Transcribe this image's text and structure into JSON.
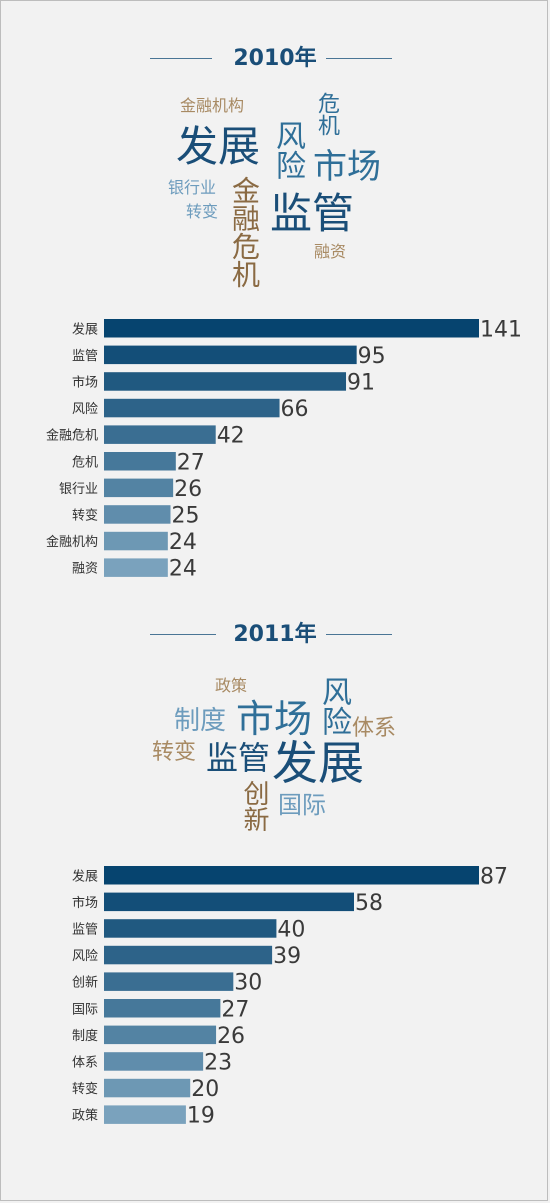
{
  "colors": {
    "bar_dark": "#06446f",
    "bar_light": "#7aa2bd",
    "cloud_blue_dark": "#1a4e78",
    "cloud_blue_mid": "#2f6f98",
    "cloud_blue_light": "#6d9cbd",
    "cloud_tan": "#a88a63",
    "cloud_brown": "#8a6a43"
  },
  "sections": [
    {
      "year": "2010年",
      "cloud": [
        {
          "text": "金融机构",
          "size": 16,
          "color": "cloud_tan",
          "vertical": false
        },
        {
          "text": "发展",
          "size": 42,
          "color": "cloud_blue_dark",
          "vertical": false
        },
        {
          "text": "危机",
          "size": 22,
          "color": "cloud_blue_mid",
          "vertical": true
        },
        {
          "text": "风险",
          "size": 30,
          "color": "cloud_blue_mid",
          "vertical": true
        },
        {
          "text": "市场",
          "size": 34,
          "color": "cloud_blue_mid",
          "vertical": false
        },
        {
          "text": "银行业",
          "size": 16,
          "color": "cloud_blue_light",
          "vertical": false
        },
        {
          "text": "转变",
          "size": 16,
          "color": "cloud_blue_light",
          "vertical": false
        },
        {
          "text": "金融危机",
          "size": 28,
          "color": "cloud_brown",
          "vertical": true
        },
        {
          "text": "监管",
          "size": 42,
          "color": "cloud_blue_dark",
          "vertical": false
        },
        {
          "text": "融资",
          "size": 16,
          "color": "cloud_tan",
          "vertical": false
        }
      ],
      "chart_data": {
        "type": "bar",
        "categories": [
          "发展",
          "监管",
          "市场",
          "风险",
          "金融危机",
          "危机",
          "银行业",
          "转变",
          "金融机构",
          "融资"
        ],
        "values": [
          141,
          95,
          91,
          66,
          42,
          27,
          26,
          25,
          24,
          24
        ],
        "xlim": [
          0,
          141
        ]
      }
    },
    {
      "year": "2011年",
      "cloud": [
        {
          "text": "政策",
          "size": 16,
          "color": "cloud_tan",
          "vertical": false
        },
        {
          "text": "风险",
          "size": 30,
          "color": "cloud_blue_mid",
          "vertical": true
        },
        {
          "text": "制度",
          "size": 26,
          "color": "cloud_blue_light",
          "vertical": false
        },
        {
          "text": "市场",
          "size": 38,
          "color": "cloud_blue_mid",
          "vertical": false
        },
        {
          "text": "体系",
          "size": 22,
          "color": "cloud_tan",
          "vertical": false
        },
        {
          "text": "转变",
          "size": 22,
          "color": "cloud_tan",
          "vertical": false
        },
        {
          "text": "监管",
          "size": 32,
          "color": "cloud_blue_dark",
          "vertical": false
        },
        {
          "text": "发展",
          "size": 46,
          "color": "cloud_blue_dark",
          "vertical": false
        },
        {
          "text": "创新",
          "size": 26,
          "color": "cloud_brown",
          "vertical": true
        },
        {
          "text": "国际",
          "size": 24,
          "color": "cloud_blue_light",
          "vertical": false
        }
      ],
      "chart_data": {
        "type": "bar",
        "categories": [
          "发展",
          "市场",
          "监管",
          "风险",
          "创新",
          "国际",
          "制度",
          "体系",
          "转变",
          "政策"
        ],
        "values": [
          87,
          58,
          40,
          39,
          30,
          27,
          26,
          23,
          20,
          19
        ],
        "xlim": [
          0,
          87
        ]
      }
    }
  ]
}
